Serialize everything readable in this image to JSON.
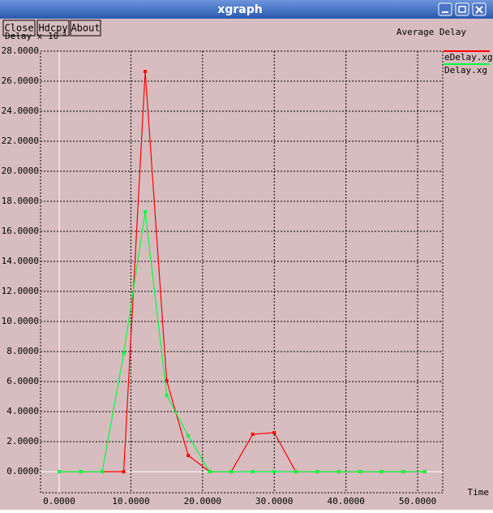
{
  "window": {
    "title": "xgraph",
    "buttons": [
      "Close",
      "Hdcpy",
      "About"
    ]
  },
  "chart_data": {
    "type": "line",
    "title": "Average Delay",
    "y_label": "Delay x 10",
    "y_label_exponent": "-3",
    "x_label": "Time",
    "x": [
      0,
      3,
      6,
      9,
      12,
      15,
      18,
      21,
      24,
      27,
      30,
      33,
      36,
      39,
      42,
      45,
      48,
      51
    ],
    "series": [
      {
        "name": "eDelay.xg",
        "color": "#ff0000",
        "values": [
          0,
          0,
          0,
          0,
          26.65,
          6.05,
          1.08,
          0,
          0,
          2.49,
          2.6,
          0,
          0,
          0,
          0,
          0,
          0,
          0
        ]
      },
      {
        "name": "Delay.xg",
        "color": "#00ff40",
        "values": [
          0,
          0,
          0,
          7.84,
          17.3,
          5.08,
          2.38,
          0,
          0,
          0,
          0,
          0,
          0,
          0,
          0,
          0,
          0,
          0
        ]
      }
    ],
    "xlim": [
      -2.6,
      53.5
    ],
    "ylim": [
      -1.4,
      28
    ],
    "xticks": [
      {
        "value": 0,
        "label": "0.0000"
      },
      {
        "value": 10,
        "label": "10.0000"
      },
      {
        "value": 20,
        "label": "20.0000"
      },
      {
        "value": 30,
        "label": "30.0000"
      },
      {
        "value": 40,
        "label": "40.0000"
      },
      {
        "value": 50,
        "label": "50.0000"
      }
    ],
    "yticks": [
      {
        "value": 0,
        "label": "0.0000"
      },
      {
        "value": 2,
        "label": "2.0000"
      },
      {
        "value": 4,
        "label": "4.0000"
      },
      {
        "value": 6,
        "label": "6.0000"
      },
      {
        "value": 8,
        "label": "8.0000"
      },
      {
        "value": 10,
        "label": "10.0000"
      },
      {
        "value": 12,
        "label": "12.0000"
      },
      {
        "value": 14,
        "label": "14.0000"
      },
      {
        "value": 16,
        "label": "16.0000"
      },
      {
        "value": 18,
        "label": "18.0000"
      },
      {
        "value": 20,
        "label": "20.0000"
      },
      {
        "value": 22,
        "label": "22.0000"
      },
      {
        "value": 24,
        "label": "24.0000"
      },
      {
        "value": 26,
        "label": "26.0000"
      },
      {
        "value": 28,
        "label": "28.0000"
      }
    ],
    "grid": true,
    "legend": "right"
  }
}
